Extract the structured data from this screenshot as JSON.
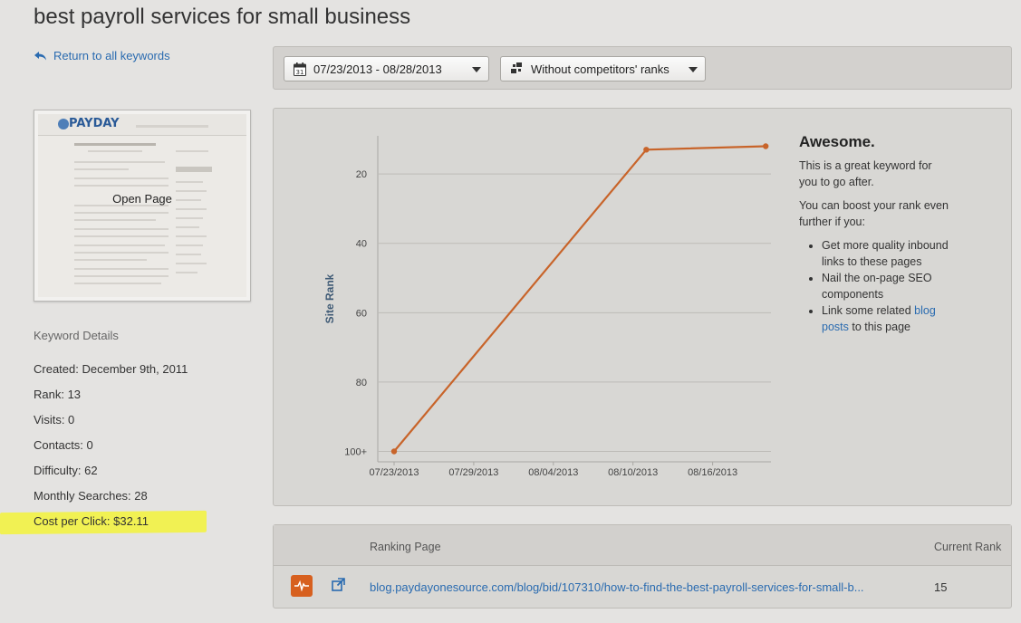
{
  "page": {
    "title": "best payroll services for small business",
    "back_link": "Return to all keywords"
  },
  "thumbnail": {
    "open_label": "Open Page",
    "logo_text": "PAYDAY"
  },
  "keyword_details": {
    "heading": "Keyword Details",
    "created": "Created: December 9th, 2011",
    "rank": "Rank: 13",
    "visits": "Visits: 0",
    "contacts": "Contacts: 0",
    "difficulty": "Difficulty: 62",
    "monthly_searches": "Monthly Searches: 28",
    "cost_per_click": "Cost per Click: $32.11",
    "highlight_color": "#f2f247"
  },
  "toolbar": {
    "date_range": "07/23/2013 - 08/28/2013",
    "date_icon_text": "31",
    "competitors": "Without competitors' ranks"
  },
  "advice": {
    "title": "Awesome.",
    "line1": "This is a great keyword for you to go after.",
    "line2": "You can boost your rank even further if you:",
    "bullet1": "Get more quality inbound links to these pages",
    "bullet2": "Nail the on-page SEO components",
    "bullet3_pre": "Link some related ",
    "bullet3_link": "blog posts",
    "bullet3_post": " to this page"
  },
  "chart_data": {
    "type": "line",
    "ylabel": "Site Rank",
    "xlabel": "",
    "y_ticks": [
      "20",
      "40",
      "60",
      "80",
      "100+"
    ],
    "y_tick_values": [
      20,
      40,
      60,
      80,
      100
    ],
    "x_ticks": [
      "07/23/2013",
      "07/29/2013",
      "08/04/2013",
      "08/10/2013",
      "08/16/2013"
    ],
    "x_tick_days": [
      0,
      6,
      12,
      18,
      24
    ],
    "ylim": [
      9,
      103
    ],
    "y_inverted": true,
    "grid": true,
    "line_color": "#c8642a",
    "series": [
      {
        "dates": [
          "07/23/2013",
          "08/11/2013",
          "08/20/2013"
        ],
        "values": [
          100,
          13,
          12
        ]
      }
    ]
  },
  "ranking_table": {
    "col_page": "Ranking Page",
    "col_rank": "Current Rank",
    "rows": [
      {
        "url": "blog.paydayonesource.com/blog/bid/107310/how-to-find-the-best-payroll-services-for-small-b...",
        "rank": "15"
      }
    ]
  }
}
